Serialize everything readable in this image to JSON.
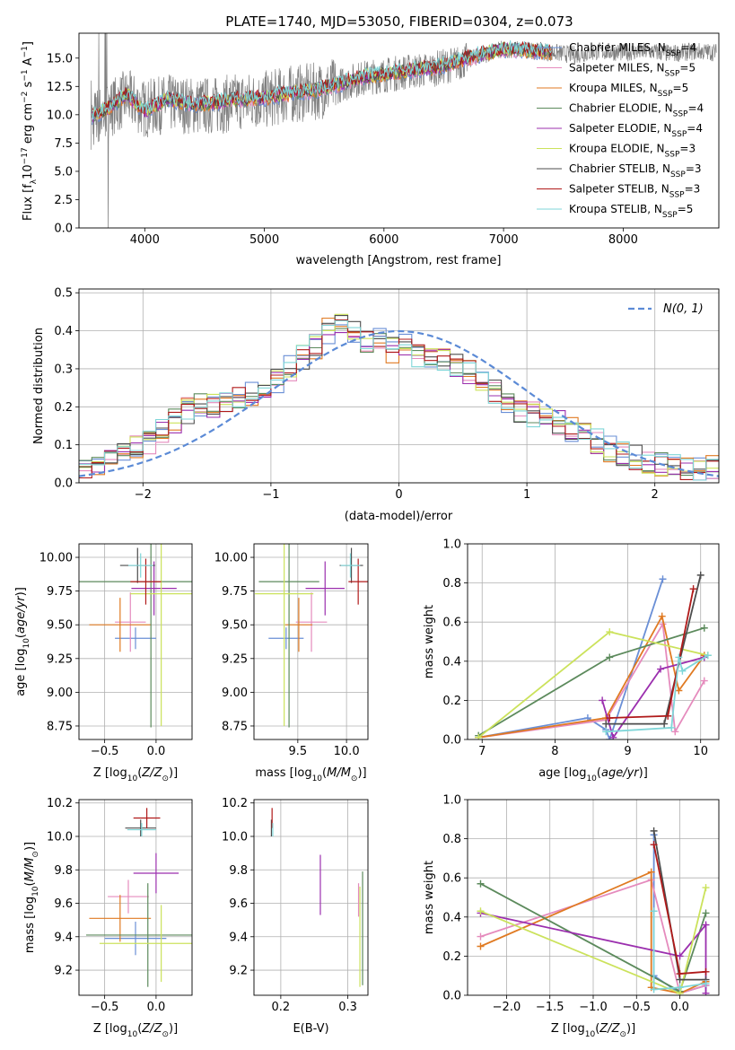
{
  "title": "PLATE=1740, MJD=53050, FIBERID=0304, z=0.073",
  "series_styles": [
    {
      "name": "Chabrier MILES, N$_{SSP}$=4",
      "label_base": "Chabrier MILES, N",
      "label_sub": "SSP",
      "label_tail": "=4",
      "color": "#6a8fd6"
    },
    {
      "name": "Salpeter MILES, N$_{SSP}$=5",
      "label_base": "Salpeter MILES, N",
      "label_sub": "SSP",
      "label_tail": "=5",
      "color": "#e58bbd"
    },
    {
      "name": "Kroupa MILES, N$_{SSP}$=5",
      "label_base": "Kroupa MILES, N",
      "label_sub": "SSP",
      "label_tail": "=5",
      "color": "#e07a22"
    },
    {
      "name": "Chabrier ELODIE, N$_{SSP}$=4",
      "label_base": "Chabrier ELODIE, N",
      "label_sub": "SSP",
      "label_tail": "=4",
      "color": "#5c8a5c"
    },
    {
      "name": "Salpeter ELODIE, N$_{SSP}$=4",
      "label_base": "Salpeter ELODIE, N",
      "label_sub": "SSP",
      "label_tail": "=4",
      "color": "#9b2fae"
    },
    {
      "name": "Kroupa ELODIE, N$_{SSP}$=3",
      "label_base": "Kroupa ELODIE, N",
      "label_sub": "SSP",
      "label_tail": "=3",
      "color": "#cbe25b"
    },
    {
      "name": "Chabrier STELIB, N$_{SSP}$=3",
      "label_base": "Chabrier STELIB, N",
      "label_sub": "SSP",
      "label_tail": "=3",
      "color": "#4d4d4d"
    },
    {
      "name": "Salpeter STELIB, N$_{SSP}$=3",
      "label_base": "Salpeter STELIB, N",
      "label_sub": "SSP",
      "label_tail": "=3",
      "color": "#b01a1a"
    },
    {
      "name": "Kroupa STELIB, N$_{SSP}$=5",
      "label_base": "Kroupa STELIB, N",
      "label_sub": "SSP",
      "label_tail": "=5",
      "color": "#7fd6d8"
    }
  ],
  "chart_data": [
    {
      "type": "line",
      "panel": "spectrum",
      "xlabel": "wavelength [Angstrom, rest frame]",
      "ylabel": "Flux [f$_\\lambda$10$^{-17}$ erg cm$^{-2}$ s$^{-1}$ A$^{-1}$]",
      "xlim": [
        3450,
        8800
      ],
      "ylim": [
        0,
        17.2
      ],
      "xticks": [
        4000,
        5000,
        6000,
        7000,
        8000
      ],
      "yticks": [
        0.0,
        2.5,
        5.0,
        7.5,
        10.0,
        12.5,
        15.0
      ],
      "data_color": "#808080",
      "data_envelope": {
        "x": [
          3550,
          3700,
          3850,
          4000,
          4200,
          4400,
          4600,
          4800,
          5000,
          5200,
          5400,
          5600,
          5800,
          6000,
          6200,
          6400,
          6600,
          6800,
          7000,
          7200,
          7400,
          7600,
          7800,
          8000,
          8200,
          8400,
          8600,
          8800
        ],
        "y": [
          9.5,
          10.5,
          11.5,
          10.5,
          11.0,
          10.8,
          10.8,
          11.2,
          11.3,
          11.8,
          12.0,
          12.5,
          13.2,
          13.5,
          13.8,
          14.0,
          14.5,
          15.2,
          15.8,
          15.7,
          15.5,
          15.3,
          15.6,
          15.5,
          15.6,
          15.4,
          15.6,
          15.5
        ]
      },
      "model_curve": {
        "x": [
          3550,
          3700,
          3850,
          4000,
          4200,
          4400,
          4600,
          4800,
          5000,
          5200,
          5400,
          5600,
          5800,
          6000,
          6200,
          6400,
          6600,
          6800,
          7000,
          7200,
          7400
        ],
        "y": [
          9.8,
          10.6,
          11.8,
          10.3,
          11.4,
          10.9,
          11.1,
          11.4,
          11.5,
          11.9,
          12.1,
          12.6,
          13.3,
          13.6,
          13.9,
          14.1,
          14.7,
          15.3,
          15.8,
          15.7,
          15.5
        ]
      }
    },
    {
      "type": "step",
      "panel": "residual_distribution",
      "xlabel": "(data-model)/error",
      "ylabel": "Normed distribution",
      "xlim": [
        -2.5,
        2.5
      ],
      "ylim": [
        0,
        0.51
      ],
      "xticks": [
        -2,
        -1,
        0,
        1,
        2
      ],
      "yticks": [
        0.0,
        0.1,
        0.2,
        0.3,
        0.4,
        0.5
      ],
      "legend": {
        "label": "N(0, 1)",
        "location": "upper right",
        "style": "dashed"
      },
      "bin_width": 0.1,
      "histogram": {
        "centers": [
          -2.45,
          -2.35,
          -2.25,
          -2.15,
          -2.05,
          -1.95,
          -1.85,
          -1.75,
          -1.65,
          -1.55,
          -1.45,
          -1.35,
          -1.25,
          -1.15,
          -1.05,
          -0.95,
          -0.85,
          -0.75,
          -0.65,
          -0.55,
          -0.45,
          -0.35,
          -0.25,
          -0.15,
          -0.05,
          0.05,
          0.15,
          0.25,
          0.35,
          0.45,
          0.55,
          0.65,
          0.75,
          0.85,
          0.95,
          1.05,
          1.15,
          1.25,
          1.35,
          1.45,
          1.55,
          1.65,
          1.75,
          1.85,
          1.95,
          2.05,
          2.15,
          2.25,
          2.35,
          2.45
        ],
        "values": [
          0.04,
          0.05,
          0.06,
          0.08,
          0.1,
          0.11,
          0.14,
          0.16,
          0.19,
          0.21,
          0.2,
          0.22,
          0.22,
          0.23,
          0.25,
          0.27,
          0.3,
          0.33,
          0.36,
          0.4,
          0.42,
          0.4,
          0.37,
          0.38,
          0.35,
          0.36,
          0.34,
          0.33,
          0.33,
          0.31,
          0.29,
          0.26,
          0.24,
          0.2,
          0.19,
          0.18,
          0.17,
          0.16,
          0.14,
          0.13,
          0.11,
          0.09,
          0.08,
          0.07,
          0.06,
          0.05,
          0.05,
          0.04,
          0.04,
          0.04
        ]
      }
    },
    {
      "type": "errorbar",
      "panel": "age_vs_Z",
      "xlabel": "Z [log$_{10}$(Z/Z$_\\odot$)]",
      "ylabel": "age [log$_{10}$(age/yr)]",
      "xlim": [
        -0.75,
        0.35
      ],
      "ylim": [
        8.65,
        10.1
      ],
      "xticks": [
        -0.5,
        0.0
      ],
      "yticks": [
        8.75,
        9.0,
        9.25,
        9.5,
        9.75,
        10.0
      ],
      "points": [
        {
          "x": -0.2,
          "y": 9.4,
          "xerr": 0.2,
          "yerr": 0.08
        },
        {
          "x": -0.25,
          "y": 9.52,
          "xerr": 0.15,
          "yerr": 0.22
        },
        {
          "x": -0.35,
          "y": 9.5,
          "xerr": 0.3,
          "yerr": 0.2
        },
        {
          "x": -0.05,
          "y": 9.82,
          "xerr": 0.7,
          "yerr": 1.08
        },
        {
          "x": -0.02,
          "y": 9.77,
          "xerr": 0.22,
          "yerr": 0.2
        },
        {
          "x": 0.05,
          "y": 9.73,
          "xerr": 0.3,
          "yerr": 0.98
        },
        {
          "x": -0.18,
          "y": 9.94,
          "xerr": 0.17,
          "yerr": 0.13
        },
        {
          "x": -0.1,
          "y": 9.82,
          "xerr": 0.15,
          "yerr": 0.17
        },
        {
          "x": -0.15,
          "y": 9.94,
          "xerr": 0.12,
          "yerr": 0.09
        }
      ]
    },
    {
      "type": "errorbar",
      "panel": "age_vs_mass",
      "xlabel": "mass [log$_{10}$(M/M$_\\odot$)]",
      "xlim": [
        9.05,
        10.22
      ],
      "ylim": [
        8.65,
        10.1
      ],
      "xticks": [
        9.5,
        10.0
      ],
      "yticks": [
        8.75,
        9.0,
        9.25,
        9.5,
        9.75,
        10.0
      ],
      "points": [
        {
          "x": 9.38,
          "y": 9.4,
          "xerr": 0.18,
          "yerr": 0.08
        },
        {
          "x": 9.64,
          "y": 9.52,
          "xerr": 0.16,
          "yerr": 0.22
        },
        {
          "x": 9.51,
          "y": 9.5,
          "xerr": 0.14,
          "yerr": 0.2
        },
        {
          "x": 9.41,
          "y": 9.82,
          "xerr": 0.31,
          "yerr": 1.08
        },
        {
          "x": 9.78,
          "y": 9.77,
          "xerr": 0.2,
          "yerr": 0.2
        },
        {
          "x": 9.36,
          "y": 9.73,
          "xerr": 0.3,
          "yerr": 0.98
        },
        {
          "x": 10.05,
          "y": 9.94,
          "xerr": 0.12,
          "yerr": 0.13
        },
        {
          "x": 10.12,
          "y": 9.82,
          "xerr": 0.1,
          "yerr": 0.17
        },
        {
          "x": 10.04,
          "y": 9.94,
          "xerr": 0.1,
          "yerr": 0.09
        }
      ]
    },
    {
      "type": "line",
      "panel": "mass_weight_vs_age",
      "xlabel": "age  [log$_{10}$(age/yr)]",
      "ylabel": "mass weight",
      "xlim": [
        6.8,
        10.25
      ],
      "ylim": [
        0,
        1.0
      ],
      "xticks": [
        7,
        8,
        9,
        10
      ],
      "yticks": [
        0.0,
        0.2,
        0.4,
        0.6,
        0.8,
        1.0
      ],
      "series": [
        {
          "x": [
            6.95,
            8.45,
            8.7,
            8.75,
            9.48
          ],
          "y": [
            0.01,
            0.11,
            0.05,
            0.0,
            0.82
          ]
        },
        {
          "x": [
            6.95,
            8.7,
            9.48,
            9.65,
            10.05
          ],
          "y": [
            0.01,
            0.1,
            0.59,
            0.04,
            0.3
          ]
        },
        {
          "x": [
            6.95,
            8.7,
            9.47,
            9.7,
            10.05
          ],
          "y": [
            0.01,
            0.11,
            0.63,
            0.25,
            0.43
          ]
        },
        {
          "x": [
            6.95,
            8.75,
            10.05
          ],
          "y": [
            0.02,
            0.42,
            0.57
          ]
        },
        {
          "x": [
            8.65,
            8.8,
            9.45,
            10.05
          ],
          "y": [
            0.2,
            0.01,
            0.36,
            0.42
          ]
        },
        {
          "x": [
            6.95,
            8.75,
            10.1
          ],
          "y": [
            0.01,
            0.55,
            0.43
          ]
        },
        {
          "x": [
            8.7,
            9.5,
            10.0
          ],
          "y": [
            0.08,
            0.08,
            0.84
          ]
        },
        {
          "x": [
            8.75,
            9.55,
            9.9
          ],
          "y": [
            0.11,
            0.12,
            0.77
          ]
        },
        {
          "x": [
            8.7,
            9.6,
            9.7,
            9.75,
            10.1
          ],
          "y": [
            0.04,
            0.06,
            0.42,
            0.35,
            0.43
          ]
        }
      ]
    },
    {
      "type": "errorbar",
      "panel": "mass_vs_Z",
      "xlabel": "Z [log$_{10}$(Z/Z$_\\odot$)]",
      "ylabel": "mass [log$_{10}$(M/M$_\\odot$)]",
      "xlim": [
        -0.75,
        0.35
      ],
      "ylim": [
        9.05,
        10.22
      ],
      "xticks": [
        -0.5,
        0.0
      ],
      "yticks": [
        9.2,
        9.4,
        9.6,
        9.8,
        10.0,
        10.2
      ],
      "points": [
        {
          "x": -0.2,
          "y": 9.39,
          "xerr": 0.3,
          "yerr": 0.1
        },
        {
          "x": -0.27,
          "y": 9.64,
          "xerr": 0.2,
          "yerr": 0.1
        },
        {
          "x": -0.35,
          "y": 9.51,
          "xerr": 0.3,
          "yerr": 0.14
        },
        {
          "x": -0.08,
          "y": 9.41,
          "xerr": 0.6,
          "yerr": 0.31
        },
        {
          "x": 0.0,
          "y": 9.78,
          "xerr": 0.22,
          "yerr": 0.12
        },
        {
          "x": 0.05,
          "y": 9.36,
          "xerr": 0.6,
          "yerr": 0.23
        },
        {
          "x": -0.15,
          "y": 10.05,
          "xerr": 0.15,
          "yerr": 0.05
        },
        {
          "x": -0.09,
          "y": 10.11,
          "xerr": 0.13,
          "yerr": 0.06
        },
        {
          "x": -0.14,
          "y": 10.04,
          "xerr": 0.14,
          "yerr": 0.04
        }
      ]
    },
    {
      "type": "errorbar",
      "panel": "mass_vs_EBV",
      "xlabel": "E(B-V)",
      "xlim": [
        0.16,
        0.33
      ],
      "ylim": [
        9.05,
        10.22
      ],
      "xticks": [
        0.2,
        0.3
      ],
      "yticks": [
        9.2,
        9.4,
        9.6,
        9.8,
        10.0,
        10.2
      ],
      "points": [
        {
          "x": 0.186,
          "y": 10.05,
          "yerr": 0.05
        },
        {
          "x": 0.187,
          "y": 10.11,
          "yerr": 0.06
        },
        {
          "x": 0.188,
          "y": 10.04,
          "yerr": 0.04
        },
        {
          "x": 0.259,
          "y": 9.71,
          "yerr": 0.18
        },
        {
          "x": 0.316,
          "y": 9.62,
          "yerr": 0.1
        },
        {
          "x": 0.318,
          "y": 9.4,
          "yerr": 0.3
        },
        {
          "x": 0.322,
          "y": 9.45,
          "yerr": 0.34
        }
      ]
    },
    {
      "type": "line",
      "panel": "mass_weight_vs_Z",
      "xlabel": "Z [log$_{10}$(Z/Z$_\\odot$)]",
      "ylabel": "mass weight",
      "xlim": [
        -2.45,
        0.45
      ],
      "ylim": [
        0,
        1.0
      ],
      "xticks": [
        -2.0,
        -1.5,
        -1.0,
        -0.5,
        0.0
      ],
      "yticks": [
        0.0,
        0.2,
        0.4,
        0.6,
        0.8,
        1.0
      ],
      "series": [
        {
          "x": [
            -0.3,
            -0.3,
            0.0,
            0.3
          ],
          "y": [
            0.82,
            0.1,
            0.01,
            0.05
          ]
        },
        {
          "x": [
            -2.3,
            -0.33,
            0.0,
            0.3
          ],
          "y": [
            0.3,
            0.59,
            0.01,
            0.05
          ]
        },
        {
          "x": [
            -2.3,
            -0.33,
            -0.33,
            0.0,
            0.3
          ],
          "y": [
            0.25,
            0.63,
            0.04,
            0.01,
            0.07
          ]
        },
        {
          "x": [
            -2.3,
            0.0,
            0.3
          ],
          "y": [
            0.57,
            0.02,
            0.42
          ]
        },
        {
          "x": [
            -2.3,
            0.0,
            0.3,
            0.3
          ],
          "y": [
            0.42,
            0.2,
            0.36,
            0.01
          ]
        },
        {
          "x": [
            -2.3,
            0.0,
            0.3
          ],
          "y": [
            0.43,
            0.01,
            0.55
          ]
        },
        {
          "x": [
            -0.3,
            0.0,
            0.3
          ],
          "y": [
            0.84,
            0.08,
            0.08
          ]
        },
        {
          "x": [
            -0.3,
            0.0,
            0.3
          ],
          "y": [
            0.77,
            0.11,
            0.12
          ]
        },
        {
          "x": [
            -0.3,
            -0.3,
            0.0,
            0.3
          ],
          "y": [
            0.43,
            0.03,
            0.04,
            0.06
          ]
        }
      ]
    }
  ]
}
